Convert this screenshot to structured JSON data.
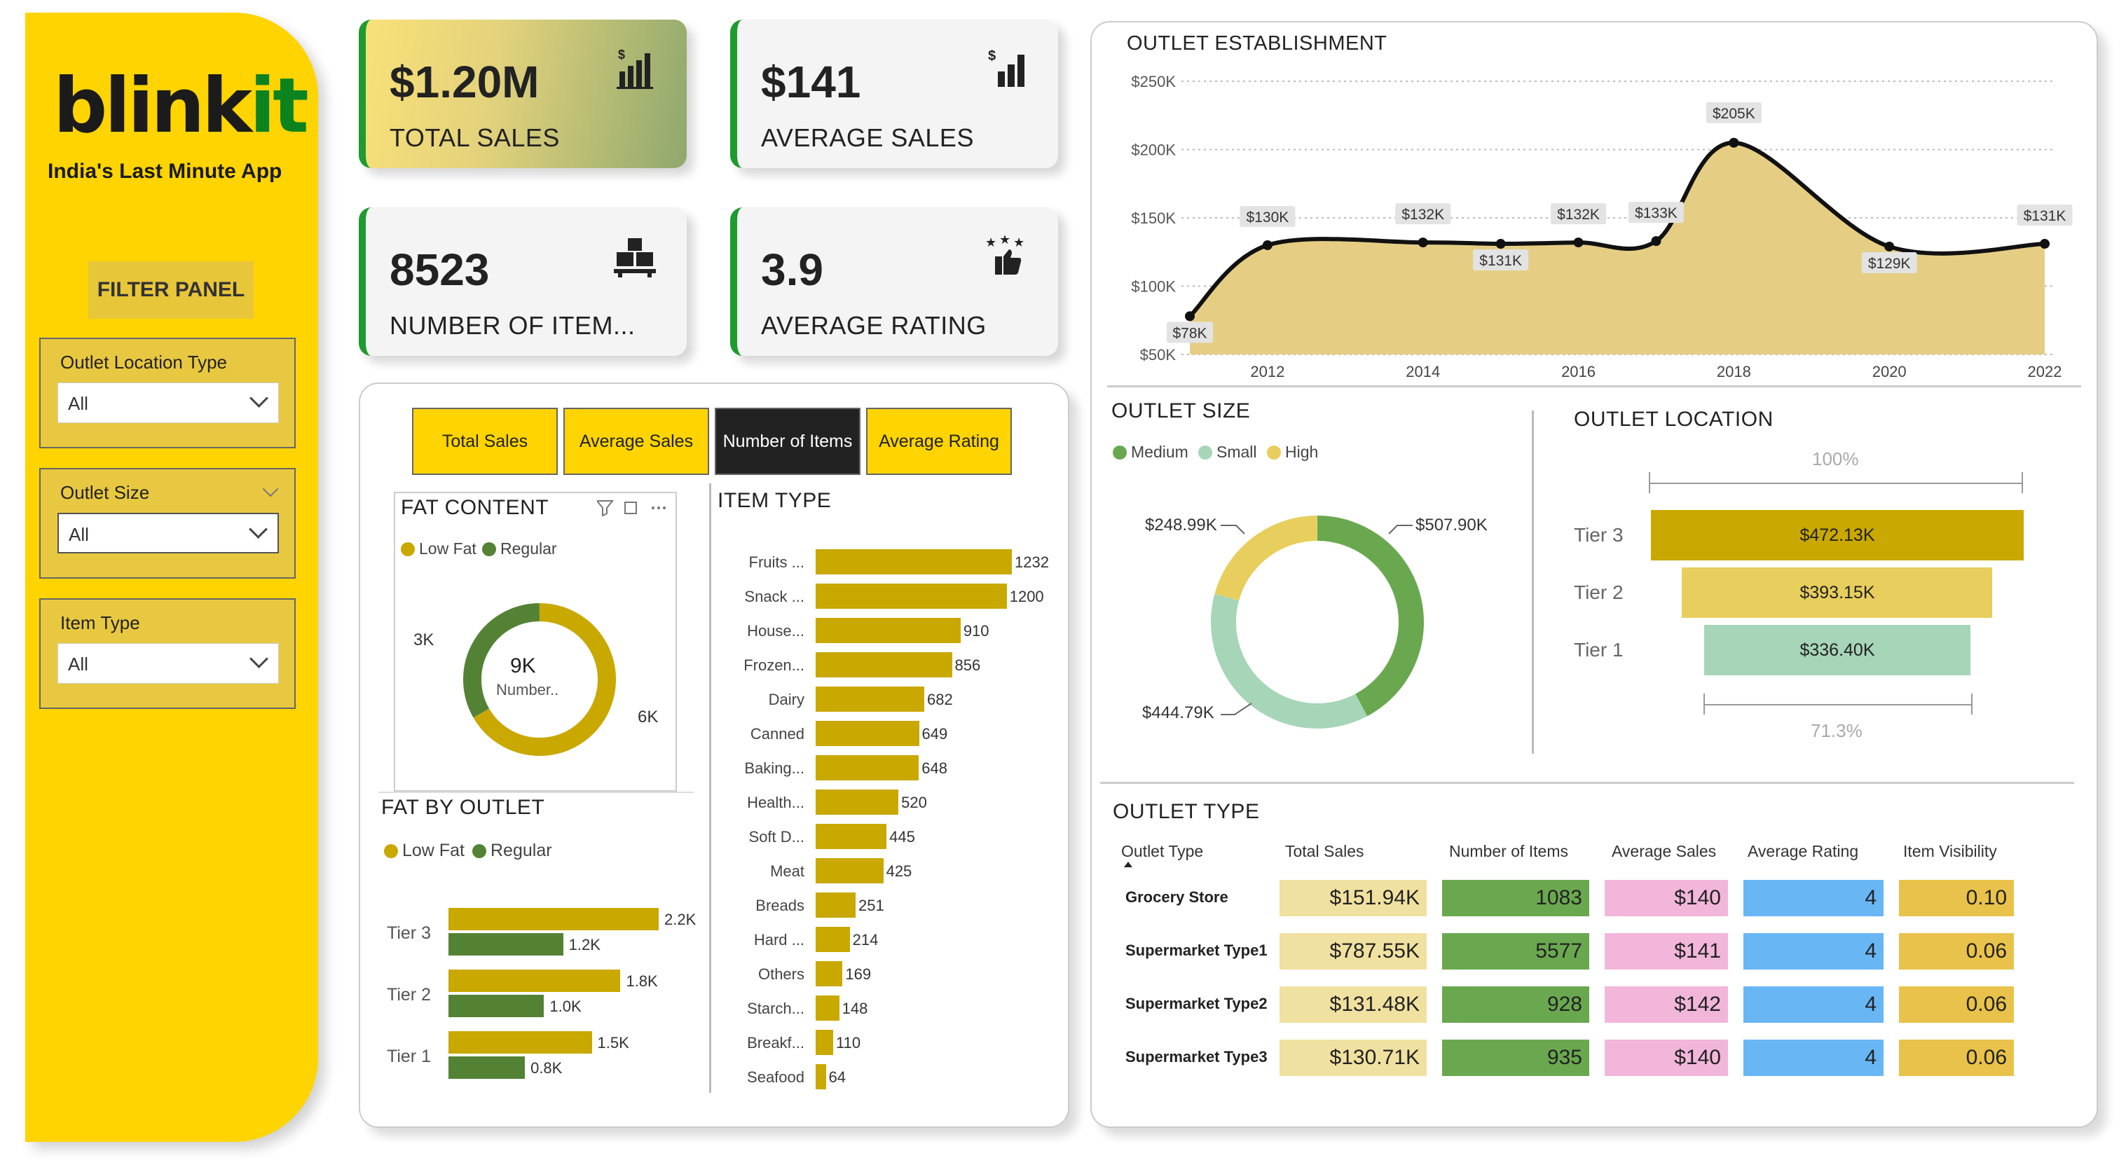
{
  "brand": {
    "logo_main": "blink",
    "logo_accent": "it",
    "tagline": "India's Last Minute App"
  },
  "colors": {
    "yellow": "#FFD400",
    "green": "#0c831f",
    "gold": "#C9A800",
    "dark_green": "#548235"
  },
  "filter_panel": {
    "title": "FILTER PANEL",
    "slicers": [
      {
        "label": "Outlet Location Type",
        "value": "All"
      },
      {
        "label": "Outlet Size",
        "value": "All"
      },
      {
        "label": "Item Type",
        "value": "All"
      }
    ]
  },
  "kpis": [
    {
      "value": "$1.20M",
      "label": "TOTAL SALES",
      "icon": "sales-chart-icon"
    },
    {
      "value": "$141",
      "label": "AVERAGE SALES",
      "icon": "dollar-bars-icon"
    },
    {
      "value": "8523",
      "label": "NUMBER OF ITEM...",
      "icon": "boxes-icon"
    },
    {
      "value": "3.9",
      "label": "AVERAGE RATING",
      "icon": "thumbs-stars-icon"
    }
  ],
  "metric_buttons": {
    "total_sales": "Total Sales",
    "average_sales": "Average Sales",
    "number_of_items": "Number of Items",
    "average_rating": "Average Rating"
  },
  "fat_content": {
    "title": "FAT CONTENT",
    "legend": [
      "Low Fat",
      "Regular"
    ],
    "center_value": "9K",
    "center_label": "Number..",
    "chart_data": {
      "type": "pie",
      "categories": [
        "Low Fat",
        "Regular"
      ],
      "values": [
        6,
        3
      ],
      "value_labels": [
        "6K",
        "3K"
      ]
    }
  },
  "fat_by_outlet": {
    "title": "FAT BY OUTLET",
    "legend": [
      "Low Fat",
      "Regular"
    ],
    "chart_data": {
      "type": "bar",
      "categories": [
        "Tier 3",
        "Tier 2",
        "Tier 1"
      ],
      "series": [
        {
          "name": "Low Fat",
          "values": [
            2.2,
            1.8,
            1.5
          ],
          "labels": [
            "2.2K",
            "1.8K",
            "1.5K"
          ]
        },
        {
          "name": "Regular",
          "values": [
            1.2,
            1.0,
            0.8
          ],
          "labels": [
            "1.2K",
            "1.0K",
            "0.8K"
          ]
        }
      ]
    }
  },
  "item_type": {
    "title": "ITEM TYPE",
    "chart_data": {
      "type": "bar",
      "categories": [
        "Fruits ...",
        "Snack ...",
        "House...",
        "Frozen...",
        "Dairy",
        "Canned",
        "Baking...",
        "Health...",
        "Soft D...",
        "Meat",
        "Breads",
        "Hard ...",
        "Others",
        "Starch...",
        "Breakf...",
        "Seafood"
      ],
      "values": [
        1232,
        1200,
        910,
        856,
        682,
        649,
        648,
        520,
        445,
        425,
        251,
        214,
        169,
        148,
        110,
        64
      ]
    }
  },
  "outlet_establishment": {
    "title": "OUTLET ESTABLISHMENT",
    "chart_data": {
      "type": "area",
      "x": [
        2011,
        2012,
        2014,
        2015,
        2016,
        2017,
        2018,
        2020,
        2022
      ],
      "values": [
        78,
        130,
        132,
        131,
        132,
        133,
        205,
        129,
        131
      ],
      "labels": [
        "$78K",
        "$130K",
        "$132K",
        "$131K",
        "$132K",
        "$133K",
        "$205K",
        "$129K",
        "$131K"
      ],
      "x_ticks": [
        "2012",
        "2014",
        "2016",
        "2018",
        "2020",
        "2022"
      ],
      "y_ticks": [
        "$50K",
        "$100K",
        "$150K",
        "$200K",
        "$250K"
      ],
      "ylim": [
        50,
        250
      ]
    }
  },
  "outlet_size": {
    "title": "OUTLET SIZE",
    "legend": [
      "Medium",
      "Small",
      "High"
    ],
    "chart_data": {
      "type": "pie",
      "categories": [
        "Medium",
        "Small",
        "High"
      ],
      "values": [
        507.9,
        444.79,
        248.99
      ],
      "labels": [
        "$507.90K",
        "$444.79K",
        "$248.99K"
      ]
    }
  },
  "outlet_location": {
    "title": "OUTLET LOCATION",
    "top_pct": "100%",
    "bottom_pct": "71.3%",
    "chart_data": {
      "type": "bar",
      "categories": [
        "Tier 3",
        "Tier 2",
        "Tier 1"
      ],
      "values": [
        472.13,
        393.15,
        336.4
      ],
      "labels": [
        "$472.13K",
        "$393.15K",
        "$336.40K"
      ]
    }
  },
  "outlet_type": {
    "title": "OUTLET TYPE",
    "columns": [
      "Outlet Type",
      "Total Sales",
      "Number of Items",
      "Average Sales",
      "Average Rating",
      "Item Visibility"
    ],
    "rows": [
      {
        "type": "Grocery Store",
        "total_sales": "$151.94K",
        "items": "1083",
        "avg_sales": "$140",
        "rating": "4",
        "visibility": "0.10"
      },
      {
        "type": "Supermarket Type1",
        "total_sales": "$787.55K",
        "items": "5577",
        "avg_sales": "$141",
        "rating": "4",
        "visibility": "0.06"
      },
      {
        "type": "Supermarket Type2",
        "total_sales": "$131.48K",
        "items": "928",
        "avg_sales": "$142",
        "rating": "4",
        "visibility": "0.06"
      },
      {
        "type": "Supermarket Type3",
        "total_sales": "$130.71K",
        "items": "935",
        "avg_sales": "$140",
        "rating": "4",
        "visibility": "0.06"
      }
    ]
  }
}
